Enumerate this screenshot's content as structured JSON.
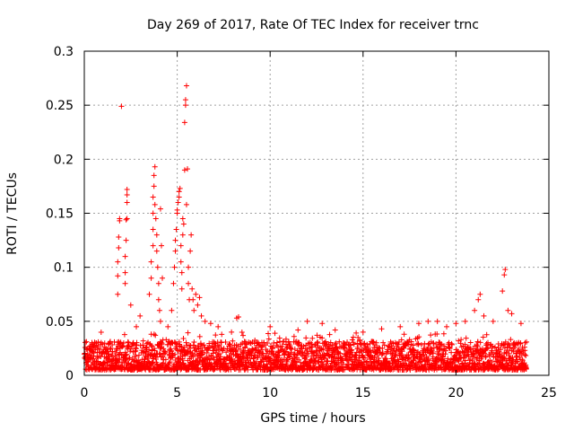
{
  "chart_data": {
    "type": "scatter",
    "title": "Day 269 of 2017, Rate Of TEC Index for receiver trnc",
    "xlabel": "GPS time / hours",
    "ylabel": "ROTI / TECUs",
    "xlim": [
      0,
      25
    ],
    "ylim": [
      0,
      0.3
    ],
    "xticks": [
      0,
      5,
      10,
      15,
      20,
      25
    ],
    "yticks": [
      0,
      0.05,
      0.1,
      0.15,
      0.2,
      0.25,
      0.3
    ],
    "xtick_labels": [
      "0",
      "5",
      "10",
      "15",
      "20",
      "25"
    ],
    "ytick_labels": [
      "0",
      "0.05",
      "0.1",
      "0.15",
      "0.2",
      "0.25",
      "0.3"
    ],
    "grid": true,
    "marker": "+",
    "series_color": "#ff0000",
    "series": [
      {
        "name": "ROTI",
        "baseline_x_range": [
          0,
          23.8
        ],
        "baseline_y_range": [
          0.005,
          0.04
        ],
        "points": [
          [
            1.8,
            0.075
          ],
          [
            1.8,
            0.092
          ],
          [
            1.8,
            0.105
          ],
          [
            1.85,
            0.118
          ],
          [
            1.85,
            0.128
          ],
          [
            1.9,
            0.143
          ],
          [
            1.9,
            0.145
          ],
          [
            2.0,
            0.249
          ],
          [
            2.2,
            0.085
          ],
          [
            2.2,
            0.095
          ],
          [
            2.2,
            0.11
          ],
          [
            2.25,
            0.125
          ],
          [
            2.25,
            0.144
          ],
          [
            2.3,
            0.145
          ],
          [
            2.3,
            0.16
          ],
          [
            2.3,
            0.167
          ],
          [
            2.3,
            0.172
          ],
          [
            2.5,
            0.065
          ],
          [
            2.8,
            0.045
          ],
          [
            3.0,
            0.055
          ],
          [
            3.5,
            0.075
          ],
          [
            3.6,
            0.09
          ],
          [
            3.6,
            0.105
          ],
          [
            3.7,
            0.12
          ],
          [
            3.7,
            0.135
          ],
          [
            3.7,
            0.15
          ],
          [
            3.7,
            0.165
          ],
          [
            3.75,
            0.175
          ],
          [
            3.75,
            0.185
          ],
          [
            3.8,
            0.193
          ],
          [
            3.8,
            0.158
          ],
          [
            3.85,
            0.145
          ],
          [
            3.9,
            0.13
          ],
          [
            3.9,
            0.115
          ],
          [
            3.95,
            0.1
          ],
          [
            4.0,
            0.085
          ],
          [
            4.0,
            0.07
          ],
          [
            4.05,
            0.06
          ],
          [
            4.1,
            0.05
          ],
          [
            4.1,
            0.154
          ],
          [
            4.15,
            0.12
          ],
          [
            4.2,
            0.09
          ],
          [
            4.5,
            0.045
          ],
          [
            4.7,
            0.06
          ],
          [
            4.8,
            0.085
          ],
          [
            4.85,
            0.1
          ],
          [
            4.9,
            0.115
          ],
          [
            4.9,
            0.125
          ],
          [
            4.95,
            0.135
          ],
          [
            5.0,
            0.15
          ],
          [
            5.0,
            0.153
          ],
          [
            5.05,
            0.16
          ],
          [
            5.1,
            0.165
          ],
          [
            5.1,
            0.17
          ],
          [
            5.15,
            0.173
          ],
          [
            5.2,
            0.12
          ],
          [
            5.2,
            0.105
          ],
          [
            5.25,
            0.095
          ],
          [
            5.25,
            0.08
          ],
          [
            5.3,
            0.13
          ],
          [
            5.3,
            0.145
          ],
          [
            5.35,
            0.14
          ],
          [
            5.4,
            0.19
          ],
          [
            5.4,
            0.234
          ],
          [
            5.45,
            0.25
          ],
          [
            5.45,
            0.255
          ],
          [
            5.5,
            0.268
          ],
          [
            5.5,
            0.158
          ],
          [
            5.55,
            0.191
          ],
          [
            5.6,
            0.1
          ],
          [
            5.6,
            0.085
          ],
          [
            5.65,
            0.07
          ],
          [
            5.7,
            0.115
          ],
          [
            5.75,
            0.13
          ],
          [
            5.8,
            0.08
          ],
          [
            5.85,
            0.07
          ],
          [
            5.9,
            0.06
          ],
          [
            6.0,
            0.075
          ],
          [
            6.1,
            0.065
          ],
          [
            6.2,
            0.072
          ],
          [
            6.3,
            0.055
          ],
          [
            6.5,
            0.05
          ],
          [
            6.8,
            0.048
          ],
          [
            7.2,
            0.045
          ],
          [
            8.2,
            0.053
          ],
          [
            8.3,
            0.054
          ],
          [
            10.0,
            0.045
          ],
          [
            11.5,
            0.042
          ],
          [
            12.0,
            0.05
          ],
          [
            12.8,
            0.048
          ],
          [
            13.5,
            0.042
          ],
          [
            15.0,
            0.04
          ],
          [
            16.0,
            0.043
          ],
          [
            17.0,
            0.045
          ],
          [
            18.0,
            0.048
          ],
          [
            18.5,
            0.05
          ],
          [
            19.0,
            0.05
          ],
          [
            19.5,
            0.045
          ],
          [
            20.0,
            0.048
          ],
          [
            20.5,
            0.05
          ],
          [
            21.0,
            0.06
          ],
          [
            21.2,
            0.07
          ],
          [
            21.3,
            0.075
          ],
          [
            21.5,
            0.055
          ],
          [
            22.0,
            0.05
          ],
          [
            22.5,
            0.078
          ],
          [
            22.6,
            0.093
          ],
          [
            22.65,
            0.098
          ],
          [
            22.8,
            0.06
          ],
          [
            23.0,
            0.057
          ],
          [
            23.5,
            0.048
          ]
        ]
      }
    ]
  }
}
